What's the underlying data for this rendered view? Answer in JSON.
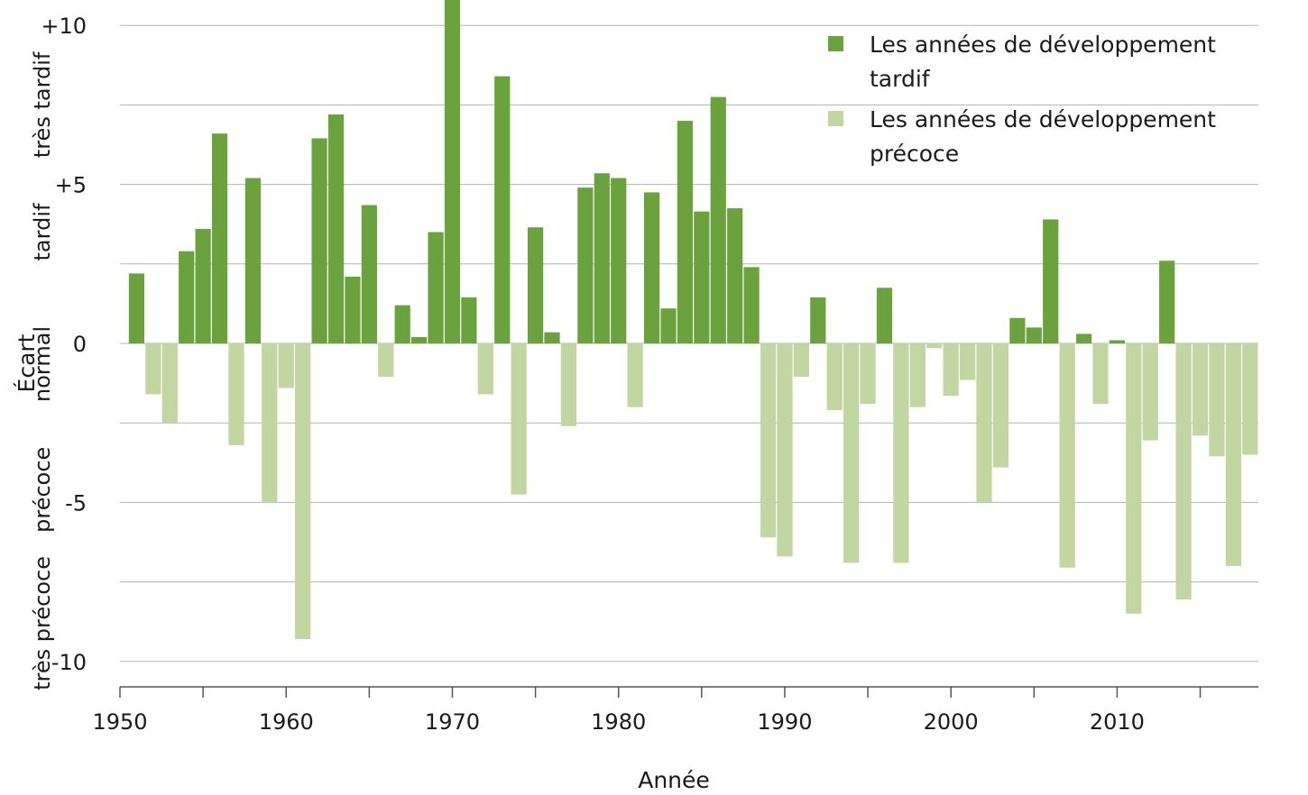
{
  "colors": {
    "late": "#6aa33d",
    "early": "#c1d6a0",
    "grid": "#b3b3b3",
    "axis": "#555555"
  },
  "chart_data": {
    "type": "bar",
    "xlabel": "Année",
    "ylabel": "Écart",
    "ylim": [
      -10.8,
      10.8
    ],
    "xlim": [
      1950,
      2018.5
    ],
    "y_ticks": [
      {
        "value": 10,
        "label": "+10"
      },
      {
        "value": 5,
        "label": "+5"
      },
      {
        "value": 0,
        "label": "0"
      },
      {
        "value": -5,
        "label": "-5"
      },
      {
        "value": -10,
        "label": "-10"
      }
    ],
    "x_ticks": [
      {
        "value": 1950,
        "label": "1950"
      },
      {
        "value": 1960,
        "label": "1960"
      },
      {
        "value": 1970,
        "label": "1970"
      },
      {
        "value": 1980,
        "label": "1980"
      },
      {
        "value": 1990,
        "label": "1990"
      },
      {
        "value": 2000,
        "label": "2000"
      },
      {
        "value": 2010,
        "label": "2010"
      }
    ],
    "y_band_labels": [
      {
        "text": "très tardif",
        "center": 7.5
      },
      {
        "text": "tardif",
        "center": 3.5
      },
      {
        "text": "normal",
        "center": -0.65
      },
      {
        "text": "précoce",
        "center": -4.6
      },
      {
        "text": "très précoce",
        "center": -8.8
      }
    ],
    "grid": true,
    "legend_position": "top-right",
    "series": [
      {
        "name": "Les années de développement tardif",
        "lines": [
          "Les années de développement",
          "tardif"
        ],
        "color_key": "late"
      },
      {
        "name": "Les années de développement précoce",
        "lines": [
          "Les années de développement",
          "précoce"
        ],
        "color_key": "early"
      }
    ],
    "years": [
      1951,
      1952,
      1953,
      1954,
      1955,
      1956,
      1957,
      1958,
      1959,
      1960,
      1961,
      1962,
      1963,
      1964,
      1965,
      1966,
      1967,
      1968,
      1969,
      1970,
      1971,
      1972,
      1973,
      1974,
      1975,
      1976,
      1977,
      1978,
      1979,
      1980,
      1981,
      1982,
      1983,
      1984,
      1985,
      1986,
      1987,
      1988,
      1989,
      1990,
      1991,
      1992,
      1993,
      1994,
      1995,
      1996,
      1997,
      1998,
      1999,
      2000,
      2001,
      2002,
      2003,
      2004,
      2005,
      2006,
      2007,
      2008,
      2009,
      2010,
      2011,
      2012,
      2013,
      2014,
      2015,
      2016,
      2017,
      2018
    ],
    "values": [
      2.2,
      -1.6,
      -2.5,
      2.9,
      3.6,
      6.6,
      -3.2,
      5.2,
      -5.0,
      -1.4,
      -9.3,
      6.45,
      7.2,
      2.1,
      4.35,
      -1.05,
      1.2,
      0.2,
      3.5,
      10.8,
      1.45,
      -1.6,
      8.4,
      -4.75,
      3.65,
      0.35,
      -2.6,
      4.9,
      5.35,
      5.2,
      -2.0,
      4.75,
      1.1,
      7.0,
      4.15,
      7.75,
      4.25,
      2.4,
      -6.1,
      -6.7,
      -1.05,
      1.45,
      -2.1,
      -6.9,
      -1.9,
      1.75,
      -6.9,
      -2.0,
      -0.15,
      -1.65,
      -1.15,
      -5.0,
      -3.9,
      0.8,
      0.5,
      3.9,
      -7.05,
      0.3,
      -1.9,
      0.1,
      -8.5,
      -3.05,
      2.6,
      -8.05,
      -2.9,
      -3.55,
      -7.0,
      -3.5
    ]
  }
}
